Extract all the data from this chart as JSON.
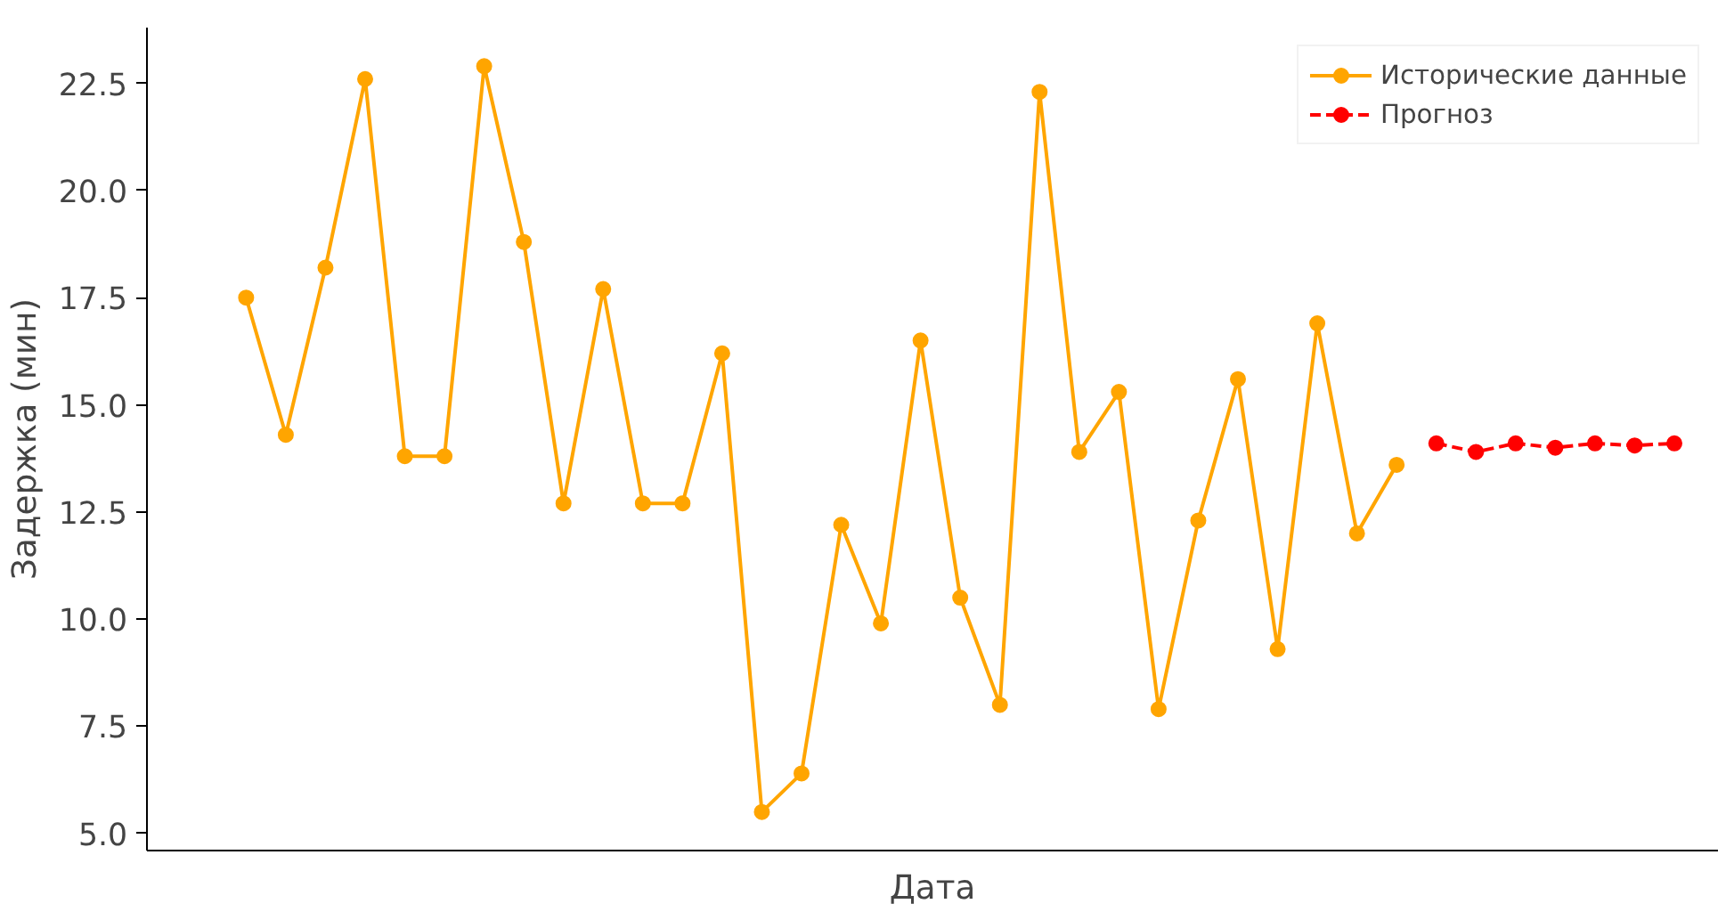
{
  "chart_data": {
    "type": "line",
    "xlabel": "Дата",
    "ylabel": "Задержка (мин)",
    "categories": [
      null,
      null,
      null,
      null,
      null,
      null,
      null,
      null,
      null,
      null,
      null,
      null,
      null,
      null,
      null,
      null,
      null,
      null,
      null,
      null,
      null,
      null,
      null,
      null,
      null,
      null,
      null,
      null,
      null,
      null,
      null,
      null,
      null,
      null,
      null,
      null,
      null
    ],
    "series": [
      {
        "name": "Исторические данные",
        "color": "#ffa500",
        "line_style": "solid",
        "values": [
          17.5,
          14.3,
          18.2,
          22.6,
          13.8,
          13.8,
          22.9,
          18.8,
          12.7,
          17.7,
          12.7,
          12.7,
          16.2,
          5.5,
          6.4,
          12.2,
          9.9,
          16.5,
          10.5,
          8.0,
          22.3,
          13.9,
          15.3,
          7.9,
          12.3,
          15.6,
          9.3,
          16.9,
          12.0,
          13.6,
          null,
          null,
          null,
          null,
          null,
          null,
          null
        ]
      },
      {
        "name": "Прогноз",
        "color": "#ff0000",
        "line_style": "dashed",
        "values": [
          null,
          null,
          null,
          null,
          null,
          null,
          null,
          null,
          null,
          null,
          null,
          null,
          null,
          null,
          null,
          null,
          null,
          null,
          null,
          null,
          null,
          null,
          null,
          null,
          null,
          null,
          null,
          null,
          null,
          null,
          14.1,
          13.9,
          14.1,
          14.0,
          14.1,
          14.05,
          14.1
        ]
      }
    ],
    "marker": "circle",
    "ylim": [
      4.6,
      23.8
    ],
    "yticks": [
      {
        "value": 5,
        "label": "5.0"
      },
      7.5,
      {
        "value": 10,
        "label": "10.0"
      },
      12.5,
      {
        "value": 15,
        "label": "15.0"
      },
      17.5,
      {
        "value": 20,
        "label": "20.0"
      },
      22.5
    ],
    "grid": false,
    "legend": "top right"
  }
}
